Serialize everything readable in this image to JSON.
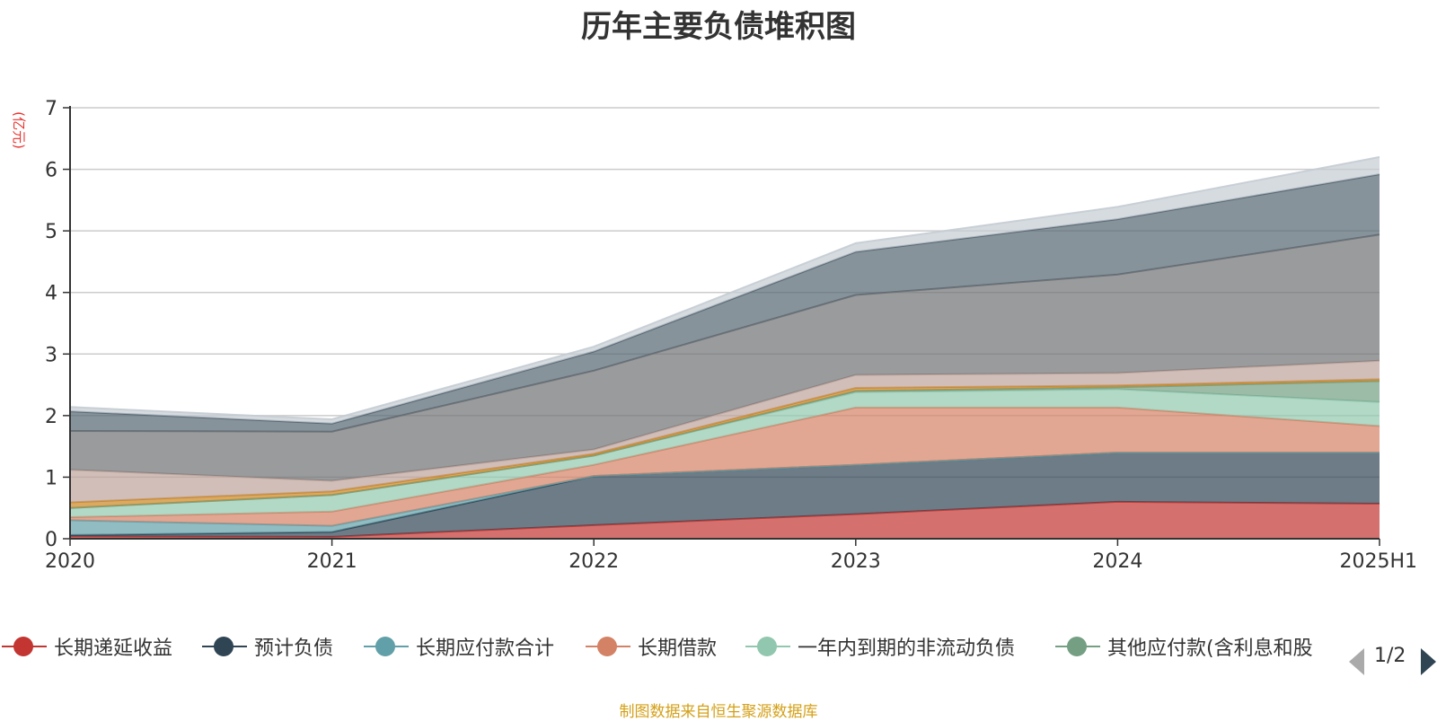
{
  "chart_data": {
    "type": "area",
    "title": "历年主要负债堆积图",
    "unit_label": "(亿元)",
    "categories": [
      "2020",
      "2021",
      "2022",
      "2023",
      "2024",
      "2025H1"
    ],
    "ylim": [
      0,
      7
    ],
    "yticks": [
      "0",
      "1",
      "2",
      "3",
      "4",
      "5",
      "6",
      "7"
    ],
    "grid": true,
    "stacked": true,
    "series": [
      {
        "name": "长期递延收益",
        "color": "#c23531",
        "values": [
          0.04,
          0.03,
          0.22,
          0.4,
          0.6,
          0.57
        ]
      },
      {
        "name": "预计负债",
        "color": "#2f4554",
        "values": [
          0.02,
          0.08,
          0.8,
          0.8,
          0.8,
          0.83
        ]
      },
      {
        "name": "长期应付款合计",
        "color": "#61a0a8",
        "values": [
          0.24,
          0.1,
          0.0,
          0.0,
          0.0,
          0.0
        ]
      },
      {
        "name": "长期借款",
        "color": "#d48265",
        "values": [
          0.05,
          0.23,
          0.18,
          0.93,
          0.73,
          0.43
        ]
      },
      {
        "name": "一年内到期的非流动负债",
        "color": "#91c7ae",
        "values": [
          0.15,
          0.27,
          0.15,
          0.25,
          0.3,
          0.39
        ]
      },
      {
        "name": "其他应付款(含利息和股",
        "color": "#749f83",
        "values": [
          0.0,
          0.0,
          0.0,
          0.02,
          0.03,
          0.34
        ]
      },
      {
        "name": "",
        "color": "#ca8622",
        "values": [
          0.09,
          0.06,
          0.03,
          0.05,
          0.03,
          0.03
        ]
      },
      {
        "name": "",
        "color": "#bda29a",
        "values": [
          0.53,
          0.17,
          0.07,
          0.21,
          0.2,
          0.3
        ]
      },
      {
        "name": "",
        "color": "#6e7074",
        "values": [
          0.63,
          0.8,
          1.28,
          1.3,
          1.6,
          2.05
        ]
      },
      {
        "name": "",
        "color": "#546570",
        "values": [
          0.32,
          0.13,
          0.31,
          0.7,
          0.9,
          0.98
        ]
      },
      {
        "name": "",
        "color": "#c4ccd3",
        "values": [
          0.07,
          0.07,
          0.08,
          0.14,
          0.2,
          0.28
        ]
      }
    ]
  },
  "legend": {
    "page": "1/2"
  },
  "footer": {
    "source": "制图数据来自恒生聚源数据库"
  }
}
